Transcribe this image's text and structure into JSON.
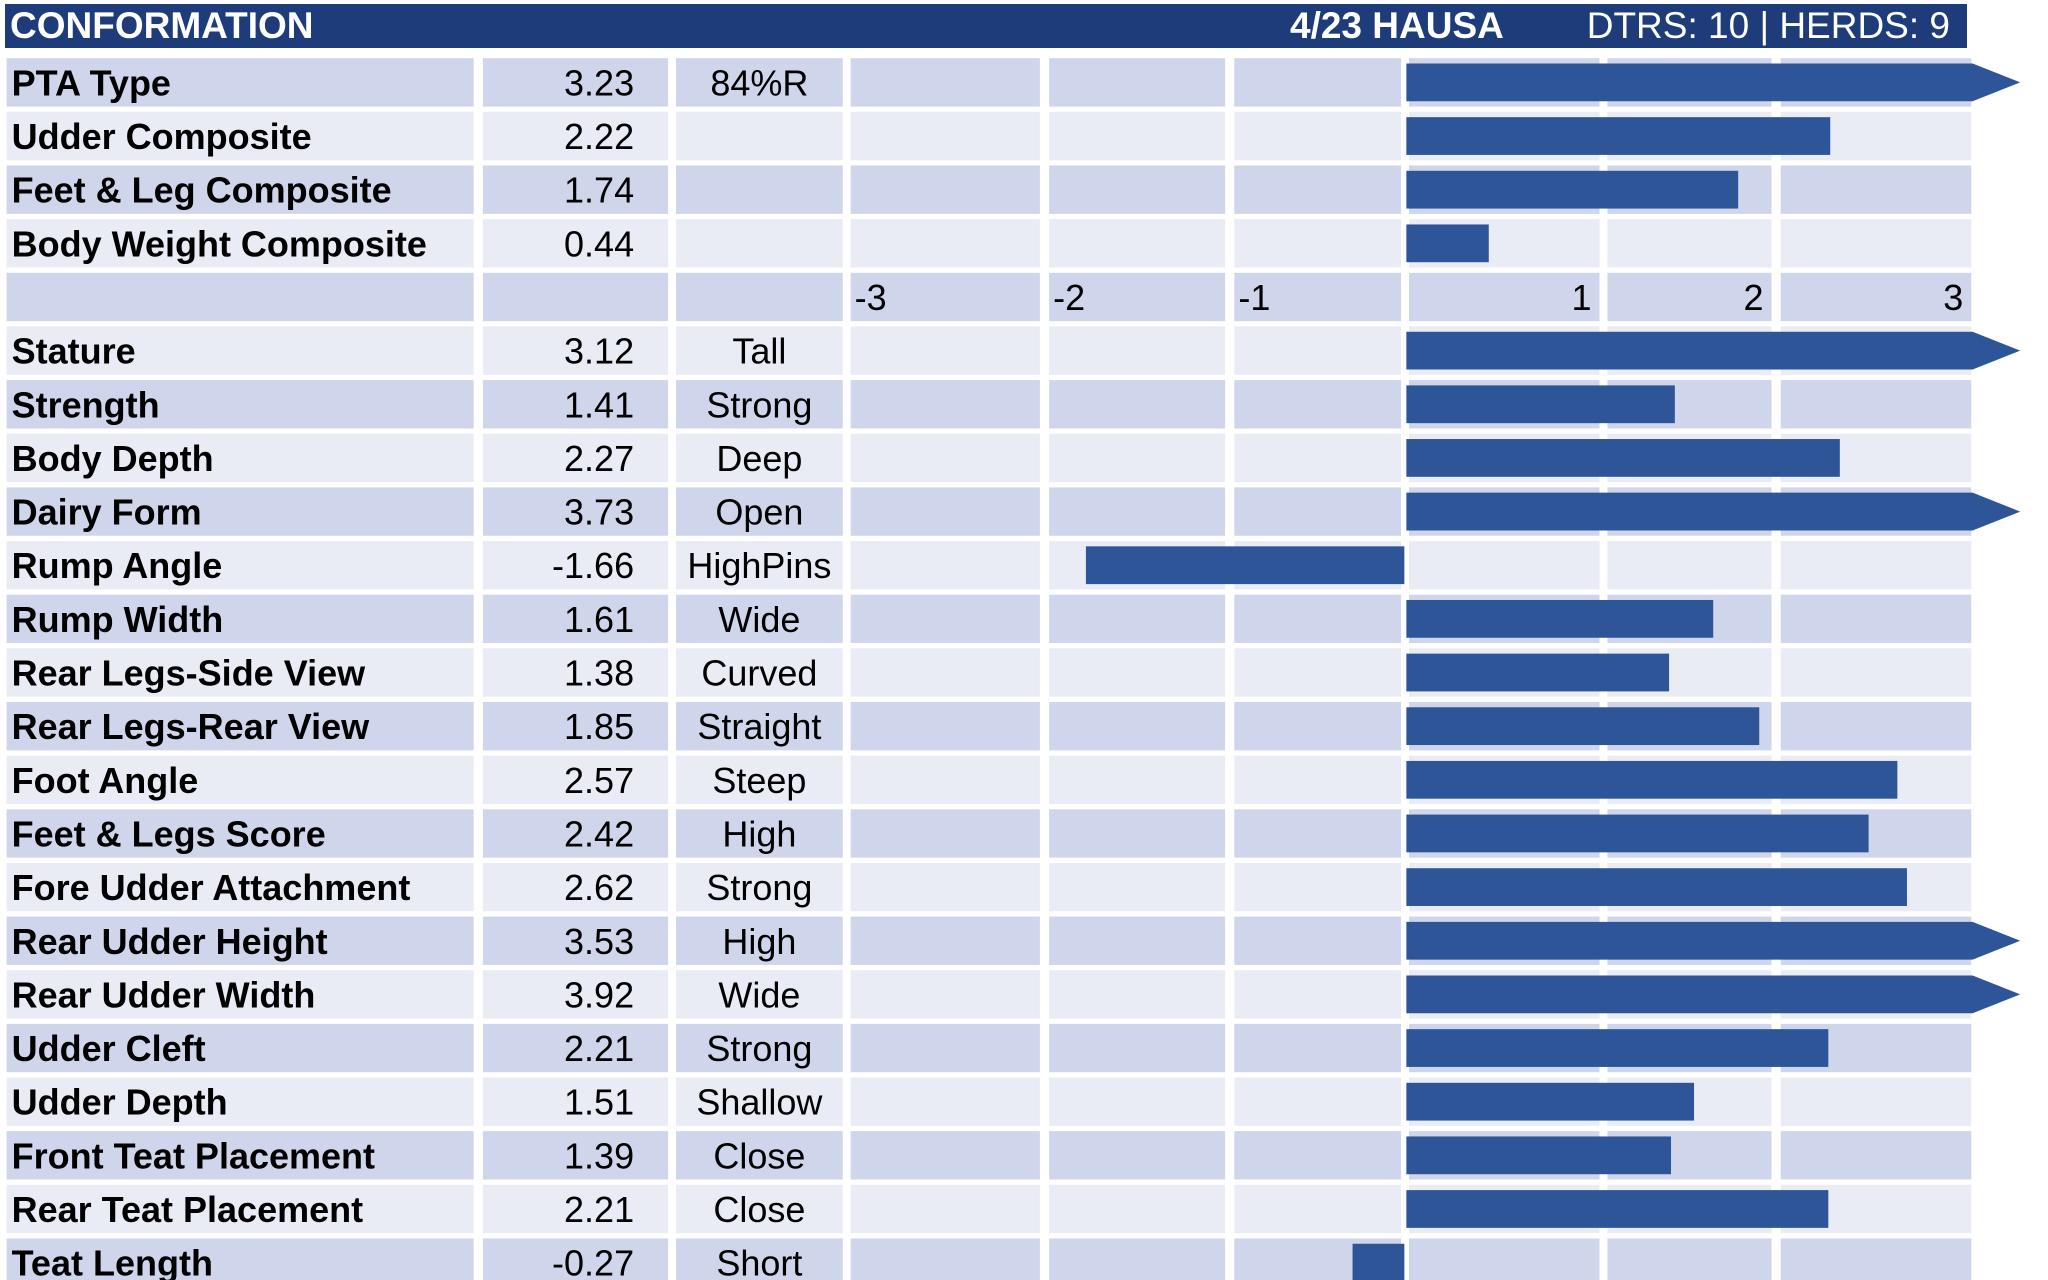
{
  "header": {
    "title": "CONFORMATION",
    "date_breed": "4/23 HAUSA",
    "stats": "DTRS: 10 | HERDS: 9"
  },
  "colors": {
    "header_bg": "#1f3c7a",
    "bar": "#2e5597",
    "row_dark": "#cfd5ea",
    "row_light": "#e9ebf5"
  },
  "chart_data": {
    "type": "bar",
    "orientation": "horizontal",
    "xlim": [
      -3,
      3
    ],
    "x_ticks": [
      "-3",
      "-2",
      "-1",
      "1",
      "2",
      "3"
    ],
    "composites": [
      {
        "trait": "PTA Type",
        "value": 3.23,
        "value_label": "3.23",
        "descriptor": "84%R"
      },
      {
        "trait": "Udder Composite",
        "value": 2.22,
        "value_label": "2.22",
        "descriptor": ""
      },
      {
        "trait": "Feet & Leg Composite",
        "value": 1.74,
        "value_label": "1.74",
        "descriptor": ""
      },
      {
        "trait": "Body Weight Composite",
        "value": 0.44,
        "value_label": "0.44",
        "descriptor": ""
      }
    ],
    "traits": [
      {
        "trait": "Stature",
        "value": 3.12,
        "value_label": "3.12",
        "descriptor": "Tall"
      },
      {
        "trait": "Strength",
        "value": 1.41,
        "value_label": "1.41",
        "descriptor": "Strong"
      },
      {
        "trait": "Body Depth",
        "value": 2.27,
        "value_label": "2.27",
        "descriptor": "Deep"
      },
      {
        "trait": "Dairy Form",
        "value": 3.73,
        "value_label": "3.73",
        "descriptor": "Open"
      },
      {
        "trait": "Rump Angle",
        "value": -1.66,
        "value_label": "-1.66",
        "descriptor": "HighPins"
      },
      {
        "trait": "Rump Width",
        "value": 1.61,
        "value_label": "1.61",
        "descriptor": "Wide"
      },
      {
        "trait": "Rear Legs-Side View",
        "value": 1.38,
        "value_label": "1.38",
        "descriptor": "Curved"
      },
      {
        "trait": "Rear Legs-Rear View",
        "value": 1.85,
        "value_label": "1.85",
        "descriptor": "Straight"
      },
      {
        "trait": "Foot Angle",
        "value": 2.57,
        "value_label": "2.57",
        "descriptor": "Steep"
      },
      {
        "trait": "Feet & Legs Score",
        "value": 2.42,
        "value_label": "2.42",
        "descriptor": "High"
      },
      {
        "trait": "Fore Udder Attachment",
        "value": 2.62,
        "value_label": "2.62",
        "descriptor": "Strong"
      },
      {
        "trait": "Rear Udder Height",
        "value": 3.53,
        "value_label": "3.53",
        "descriptor": "High"
      },
      {
        "trait": "Rear Udder Width",
        "value": 3.92,
        "value_label": "3.92",
        "descriptor": "Wide"
      },
      {
        "trait": "Udder Cleft",
        "value": 2.21,
        "value_label": "2.21",
        "descriptor": "Strong"
      },
      {
        "trait": "Udder Depth",
        "value": 1.51,
        "value_label": "1.51",
        "descriptor": "Shallow"
      },
      {
        "trait": "Front Teat Placement",
        "value": 1.39,
        "value_label": "1.39",
        "descriptor": "Close"
      },
      {
        "trait": "Rear Teat Placement",
        "value": 2.21,
        "value_label": "2.21",
        "descriptor": "Close"
      },
      {
        "trait": "Teat Length",
        "value": -0.27,
        "value_label": "-0.27",
        "descriptor": "Short"
      }
    ]
  }
}
